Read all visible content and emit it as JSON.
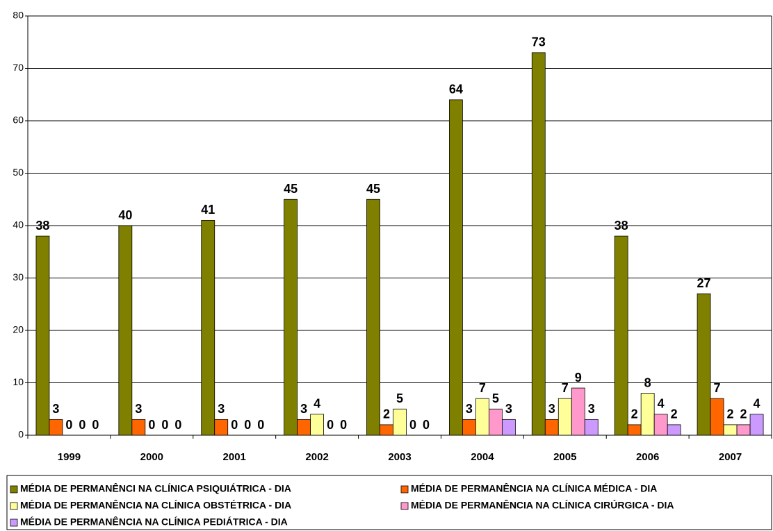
{
  "chart_data": {
    "type": "bar",
    "categories": [
      "1999",
      "2000",
      "2001",
      "2002",
      "2003",
      "2004",
      "2005",
      "2006",
      "2007"
    ],
    "series": [
      {
        "name": "MÉDIA DE PERMANÊNCI NA CLÍNICA PSIQUIÁTRICA - DIA",
        "color": "#808000",
        "values": [
          38,
          40,
          41,
          45,
          45,
          64,
          73,
          38,
          27
        ]
      },
      {
        "name": "MÉDIA DE PERMANÊNCIA NA CLÍNICA MÉDICA - DIA",
        "color": "#ff6600",
        "values": [
          3,
          3,
          3,
          3,
          2,
          3,
          3,
          2,
          7
        ]
      },
      {
        "name": "MÉDIA DE PERMANÊNCIA NA CLÍNICA OBSTÉTRICA - DIA",
        "color": "#ffff99",
        "values": [
          0,
          0,
          0,
          4,
          5,
          7,
          7,
          8,
          2
        ]
      },
      {
        "name": "MÉDIA DE PERMANÊNCIA NA CLÍNICA CIRÚRGICA - DIA",
        "color": "#ff99cc",
        "values": [
          0,
          0,
          0,
          0,
          0,
          5,
          9,
          4,
          2
        ]
      },
      {
        "name": "MÉDIA DE PERMANÊNCIA NA CLÍNICA PEDIÁTRICA - DIA",
        "color": "#cc99ff",
        "values": [
          0,
          0,
          0,
          0,
          0,
          3,
          3,
          2,
          4
        ]
      }
    ],
    "ylim": [
      0,
      80
    ],
    "yticks": [
      0,
      10,
      20,
      30,
      40,
      50,
      60,
      70,
      80
    ],
    "grid": true
  }
}
